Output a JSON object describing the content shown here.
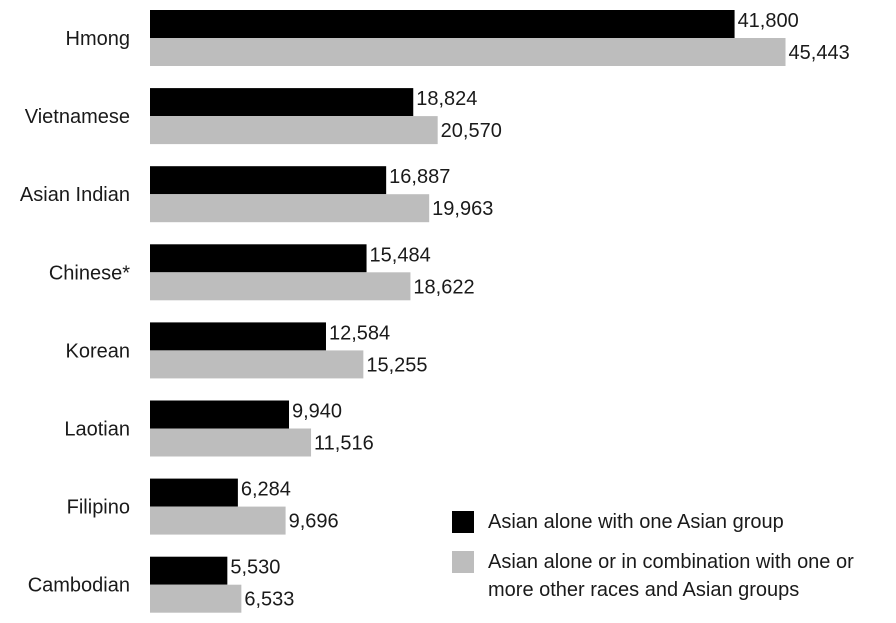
{
  "chart_data": {
    "type": "bar",
    "orientation": "horizontal",
    "categories": [
      "Hmong",
      "Vietnamese",
      "Asian Indian",
      "Chinese*",
      "Korean",
      "Laotian",
      "Filipino",
      "Cambodian"
    ],
    "series": [
      {
        "name": "Asian alone with one Asian group",
        "color": "#000000",
        "values": [
          41800,
          18824,
          16887,
          15484,
          12584,
          9940,
          6284,
          5530
        ],
        "labels": [
          "41,800",
          "18,824",
          "16,887",
          "15,484",
          "12,584",
          "9,940",
          "6,284",
          "5,530"
        ]
      },
      {
        "name": "Asian alone or in combination with one or more other races and Asian groups",
        "color": "#bdbdbd",
        "values": [
          45443,
          20570,
          19963,
          18622,
          15255,
          11516,
          9696,
          6533
        ],
        "labels": [
          "45,443",
          "20,570",
          "19,963",
          "18,622",
          "15,255",
          "11,516",
          "9,696",
          "6,533"
        ]
      }
    ],
    "xlim": [
      0,
      50000
    ],
    "grid": false,
    "legend_position": "bottom-right"
  },
  "legend": {
    "items": [
      {
        "label": "Asian alone with one Asian group",
        "color": "#000000"
      },
      {
        "label": "Asian alone or in combination with one or more other races and Asian groups",
        "color": "#bdbdbd"
      }
    ]
  }
}
